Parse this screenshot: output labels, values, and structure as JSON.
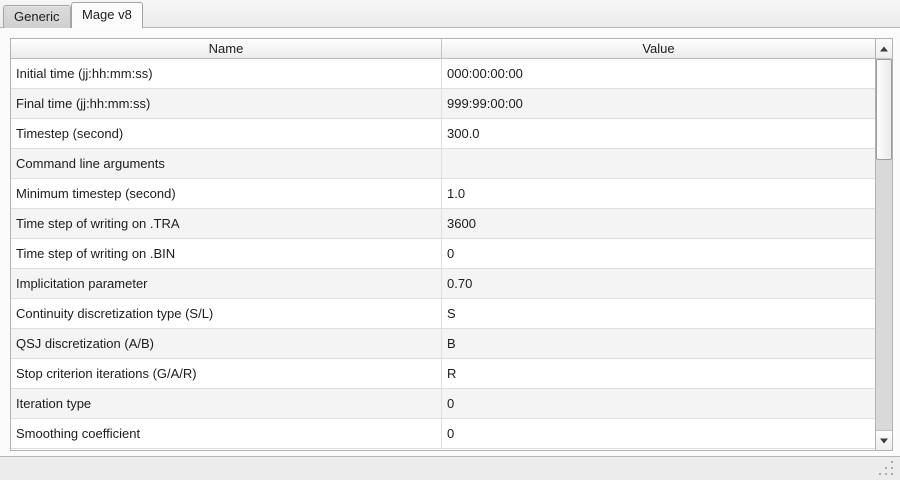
{
  "tabs": [
    {
      "label": "Generic",
      "active": false
    },
    {
      "label": "Mage v8",
      "active": true
    }
  ],
  "table": {
    "columns": [
      "Name",
      "Value"
    ],
    "rows": [
      {
        "name": "Initial time (jj:hh:mm:ss)",
        "value": "000:00:00:00"
      },
      {
        "name": "Final time (jj:hh:mm:ss)",
        "value": "999:99:00:00"
      },
      {
        "name": "Timestep (second)",
        "value": "300.0"
      },
      {
        "name": "Command line arguments",
        "value": ""
      },
      {
        "name": "Minimum timestep (second)",
        "value": "1.0"
      },
      {
        "name": "Time step of writing on .TRA",
        "value": "3600"
      },
      {
        "name": "Time step of writing on .BIN",
        "value": "0"
      },
      {
        "name": "Implicitation parameter",
        "value": "0.70"
      },
      {
        "name": "Continuity discretization type (S/L)",
        "value": "S"
      },
      {
        "name": "QSJ discretization (A/B)",
        "value": "B"
      },
      {
        "name": "Stop criterion iterations (G/A/R)",
        "value": "R"
      },
      {
        "name": "Iteration type",
        "value": "0"
      },
      {
        "name": "Smoothing coefficient",
        "value": "0"
      }
    ]
  },
  "scrollbar": {
    "up_icon": "triangle-up",
    "down_icon": "triangle-down"
  },
  "colors": {
    "window_bg": "#ececec",
    "panel_bg": "#fbfbfb",
    "active_tab_bg": "#fcfcfc",
    "inactive_tab_bg": "#d5d5d5",
    "row_alt_bg": "#f4f4f4",
    "border": "#b2b2b2",
    "text": "#1c1c1c"
  }
}
